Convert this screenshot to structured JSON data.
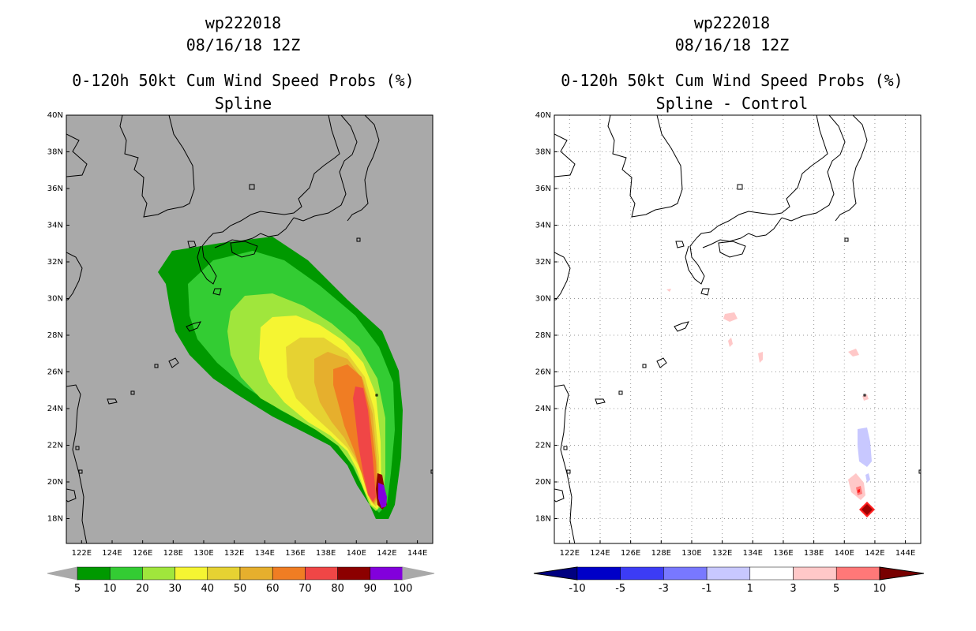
{
  "colors": {
    "background": "#ffffff",
    "left_map_background": "#a9a9a9",
    "coast": "#000000",
    "grid": "#999999",
    "prob_scale": [
      "#009900",
      "#33cc33",
      "#a0e63c",
      "#f5f532",
      "#e6d232",
      "#e6af2d",
      "#f07d23",
      "#f04646",
      "#8c0000",
      "#8200dc"
    ],
    "prob_end_arrows": "#a9a9a9",
    "diff_scale": [
      "#0000c8",
      "#3c3cf5",
      "#7878ff",
      "#c8c8ff",
      "#ffffff",
      "#ffc8c8",
      "#ff7878",
      "#ff1e1e",
      "#a00000"
    ],
    "diff_left_arrow": "#000080",
    "diff_right_arrow": "#780000"
  },
  "panels": [
    {
      "line1": "wp222018",
      "line2": "08/16/18 12Z",
      "line3": "0-120h 50kt Cum Wind Speed Probs (%)",
      "line4": "Spline",
      "lat_labels": [
        "40N",
        "38N",
        "36N",
        "34N",
        "32N",
        "30N",
        "28N",
        "26N",
        "24N",
        "22N",
        "20N",
        "18N"
      ],
      "lon_labels": [
        "122E",
        "124E",
        "126E",
        "128E",
        "130E",
        "132E",
        "134E",
        "136E",
        "138E",
        "140E",
        "142E",
        "144E"
      ],
      "colorbar_labels": [
        "5",
        "10",
        "20",
        "30",
        "40",
        "50",
        "60",
        "70",
        "80",
        "90",
        "100"
      ]
    },
    {
      "line1": "wp222018",
      "line2": "08/16/18 12Z",
      "line3": "0-120h 50kt Cum Wind Speed Probs (%)",
      "line4": "Spline - Control",
      "lat_labels": [
        "40N",
        "38N",
        "36N",
        "34N",
        "32N",
        "30N",
        "28N",
        "26N",
        "24N",
        "22N",
        "20N",
        "18N"
      ],
      "lon_labels": [
        "122E",
        "124E",
        "126E",
        "128E",
        "130E",
        "132E",
        "134E",
        "136E",
        "138E",
        "140E",
        "142E",
        "144E"
      ],
      "colorbar_labels": [
        "-10",
        "-5",
        "-3",
        "-1",
        "1",
        "3",
        "5",
        "10"
      ]
    }
  ]
}
